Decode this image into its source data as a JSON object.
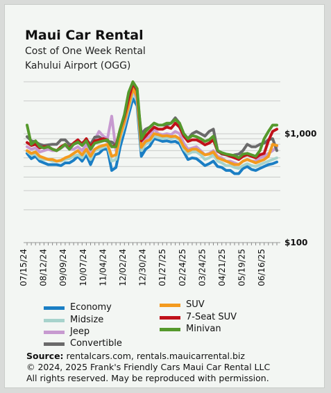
{
  "chart_data": {
    "type": "line",
    "title": "Maui Car Rental",
    "subtitle_lines": [
      "Cost of One Week Rental",
      "Kahului Airport (OGG)"
    ],
    "y_scale": "log",
    "ylim": [
      100,
      3000
    ],
    "y_tick_labels": [
      {
        "value": 1000,
        "label": "$1,000"
      },
      {
        "value": 100,
        "label": "$100"
      }
    ],
    "x_tick_labels": [
      "07/15/24",
      "08/12/24",
      "09/09/24",
      "10/07/24",
      "11/04/24",
      "12/02/24",
      "12/30/24",
      "01/27/25",
      "02/24/25",
      "03/24/25",
      "04/21/25",
      "05/19/25",
      "06/16/25"
    ],
    "grid": true,
    "legend_position": "bottom",
    "series": [
      {
        "name": "Economy",
        "color": "#1a7ec4",
        "values": [
          660,
          590,
          620,
          560,
          540,
          520,
          520,
          520,
          510,
          540,
          540,
          570,
          620,
          560,
          640,
          520,
          640,
          660,
          720,
          720,
          460,
          490,
          760,
          1050,
          1500,
          2100,
          1800,
          620,
          720,
          770,
          900,
          880,
          850,
          860,
          840,
          850,
          810,
          680,
          580,
          600,
          590,
          550,
          510,
          530,
          560,
          500,
          490,
          460,
          460,
          430,
          430,
          480,
          500,
          470,
          460,
          480,
          500,
          520,
          530,
          550
        ]
      },
      {
        "name": "Midsize",
        "color": "#a7d3cc",
        "values": [
          690,
          640,
          650,
          590,
          580,
          580,
          560,
          560,
          560,
          580,
          590,
          620,
          640,
          600,
          690,
          580,
          700,
          720,
          750,
          780,
          560,
          580,
          900,
          1200,
          1700,
          2400,
          2000,
          700,
          800,
          850,
          950,
          920,
          900,
          920,
          900,
          920,
          880,
          720,
          650,
          680,
          680,
          640,
          580,
          600,
          640,
          560,
          540,
          510,
          510,
          490,
          480,
          510,
          530,
          510,
          500,
          520,
          540,
          560,
          580,
          600
        ]
      },
      {
        "name": "Jeep",
        "color": "#c79ad0",
        "values": [
          760,
          720,
          740,
          680,
          700,
          720,
          700,
          700,
          740,
          780,
          720,
          720,
          760,
          700,
          800,
          680,
          880,
          1050,
          950,
          900,
          1450,
          700,
          1050,
          1250,
          1900,
          2600,
          2100,
          820,
          900,
          950,
          1100,
          1000,
          980,
          1000,
          980,
          1050,
          1000,
          820,
          720,
          740,
          760,
          700,
          640,
          660,
          700,
          620,
          600,
          560,
          560,
          540,
          520,
          560,
          580,
          560,
          560,
          600,
          620,
          660,
          700,
          760
        ]
      },
      {
        "name": "Convertible",
        "color": "#6a6a6a",
        "values": [
          940,
          860,
          840,
          800,
          780,
          790,
          800,
          800,
          880,
          880,
          800,
          800,
          830,
          820,
          880,
          800,
          930,
          940,
          880,
          850,
          840,
          780,
          1000,
          1300,
          2000,
          2700,
          2200,
          1000,
          1100,
          1150,
          1250,
          1200,
          1200,
          1200,
          1250,
          1400,
          1250,
          1000,
          900,
          1000,
          1050,
          1000,
          950,
          1050,
          1100,
          700,
          650,
          640,
          620,
          640,
          650,
          700,
          800,
          760,
          760,
          800,
          820,
          880,
          900,
          700
        ]
      },
      {
        "name": "SUV",
        "color": "#f39a1e",
        "values": [
          700,
          660,
          680,
          620,
          600,
          580,
          580,
          560,
          570,
          600,
          620,
          660,
          700,
          640,
          720,
          620,
          720,
          760,
          780,
          800,
          620,
          640,
          960,
          1300,
          1800,
          2600,
          2200,
          750,
          850,
          880,
          1000,
          980,
          950,
          960,
          940,
          950,
          900,
          760,
          690,
          720,
          720,
          680,
          640,
          650,
          680,
          600,
          580,
          560,
          540,
          520,
          520,
          560,
          580,
          560,
          540,
          560,
          580,
          620,
          800,
          780
        ]
      },
      {
        "name": "7-Seat SUV",
        "color": "#c0111a",
        "values": [
          830,
          780,
          800,
          740,
          760,
          760,
          720,
          700,
          760,
          800,
          740,
          820,
          880,
          800,
          900,
          760,
          860,
          880,
          900,
          880,
          760,
          780,
          1100,
          1450,
          2100,
          2900,
          2500,
          860,
          950,
          1050,
          1150,
          1100,
          1100,
          1150,
          1120,
          1250,
          1150,
          950,
          850,
          880,
          880,
          840,
          790,
          820,
          880,
          690,
          660,
          640,
          620,
          600,
          580,
          620,
          640,
          620,
          600,
          640,
          660,
          860,
          1050,
          1100
        ]
      },
      {
        "name": "Minivan",
        "color": "#55992c",
        "values": [
          1200,
          800,
          860,
          760,
          740,
          760,
          720,
          700,
          740,
          800,
          720,
          800,
          840,
          780,
          860,
          720,
          820,
          840,
          860,
          880,
          760,
          760,
          1100,
          1500,
          2400,
          3000,
          2600,
          900,
          1050,
          1150,
          1250,
          1200,
          1200,
          1250,
          1250,
          1350,
          1250,
          1000,
          900,
          960,
          940,
          900,
          850,
          880,
          950,
          700,
          670,
          650,
          640,
          630,
          600,
          650,
          660,
          640,
          620,
          700,
          900,
          1050,
          1200,
          1200
        ]
      }
    ]
  },
  "legend": {
    "col1": [
      "Economy",
      "Midsize",
      "Jeep",
      "Convertible"
    ],
    "col2": [
      "SUV",
      "7-Seat SUV",
      "Minivan"
    ]
  },
  "footer": {
    "source_label": "Source:",
    "source_text": " rentalcars.com, rentals.mauicarrental.biz",
    "line2": "© 2024, 2025  Frank's Friendly Cars Maui Car Rental LLC",
    "line3": "All rights reserved. May be reproduced with permission."
  },
  "colors": {
    "background": "#f3f6f3",
    "grid": "#c8cac8"
  }
}
